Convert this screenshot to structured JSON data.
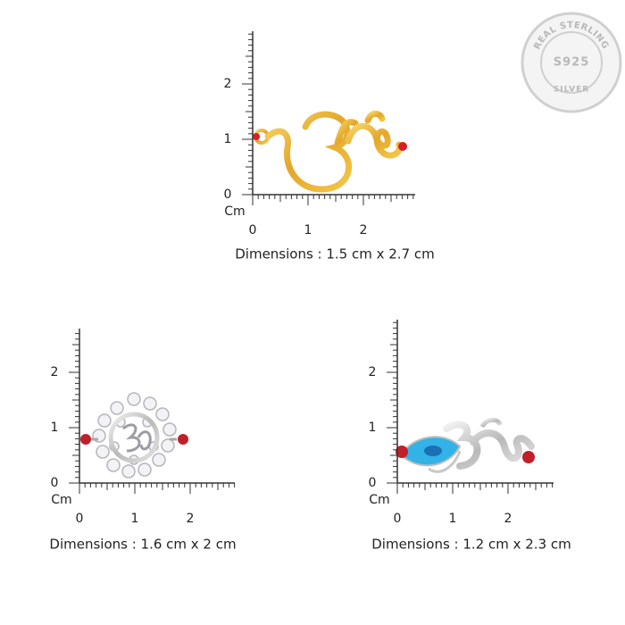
{
  "badge": {
    "top_text": "REAL STERLING",
    "center_text": "S925",
    "bottom_text": "SILVER"
  },
  "panels": [
    {
      "y_labels": [
        "0",
        "1",
        "2"
      ],
      "x_labels": [
        "0",
        "1",
        "2"
      ],
      "unit": "Cm",
      "caption": "Dimensions : 1.5 cm x 2.7 cm"
    },
    {
      "y_labels": [
        "0",
        "1",
        "2"
      ],
      "x_labels": [
        "0",
        "1",
        "2"
      ],
      "unit": "Cm",
      "caption": "Dimensions : 1.6 cm x 2 cm"
    },
    {
      "y_labels": [
        "0",
        "1",
        "2"
      ],
      "x_labels": [
        "0",
        "1",
        "2"
      ],
      "unit": "Cm",
      "caption": "Dimensions : 1.2 cm x 2.3 cm"
    }
  ]
}
